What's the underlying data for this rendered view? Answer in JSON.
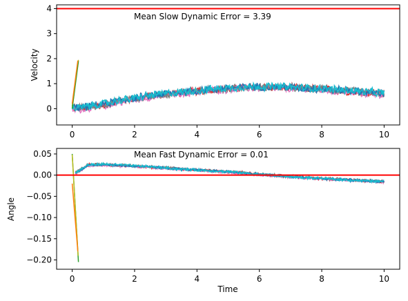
{
  "chart_data": [
    {
      "type": "line",
      "title": "",
      "xlabel": "",
      "ylabel": "Velocity",
      "annotation": "Mean Slow Dynamic Error = 3.39",
      "xlim": [
        -0.5,
        10.5
      ],
      "ylim": [
        -0.65,
        4.15
      ],
      "xticks": [
        0,
        2,
        4,
        6,
        8,
        10
      ],
      "yticks": [
        0,
        1,
        2,
        3,
        4
      ],
      "reference_line": {
        "y": 4.0,
        "color": "#ff0000"
      },
      "grid": false,
      "legend": "none",
      "series_colors": [
        "#d62728",
        "#e377c2",
        "#7f7f7f",
        "#1f77b4",
        "#17becf"
      ],
      "series": [
        {
          "x": [
            0,
            0.5,
            1,
            1.5,
            2,
            2.5,
            3,
            3.5,
            4,
            4.5,
            5,
            5.5,
            6,
            6.5,
            7,
            7.5,
            8,
            8.5,
            9,
            9.5,
            10
          ],
          "values": [
            0,
            0.05,
            0.15,
            0.3,
            0.4,
            0.5,
            0.58,
            0.64,
            0.7,
            0.76,
            0.8,
            0.84,
            0.86,
            0.85,
            0.83,
            0.8,
            0.78,
            0.73,
            0.69,
            0.64,
            0.6
          ]
        },
        {
          "x": [
            0,
            0.5,
            1,
            1.5,
            2,
            2.5,
            3,
            3.5,
            4,
            4.5,
            5,
            5.5,
            6,
            6.5,
            7,
            7.5,
            8,
            8.5,
            9,
            9.5,
            10
          ],
          "values": [
            -0.05,
            0.02,
            0.12,
            0.27,
            0.37,
            0.47,
            0.55,
            0.61,
            0.67,
            0.73,
            0.77,
            0.81,
            0.83,
            0.82,
            0.8,
            0.77,
            0.75,
            0.7,
            0.66,
            0.61,
            0.57
          ]
        },
        {
          "x": [
            0,
            0.5,
            1,
            1.5,
            2,
            2.5,
            3,
            3.5,
            4,
            4.5,
            5,
            5.5,
            6,
            6.5,
            7,
            7.5,
            8,
            8.5,
            9,
            9.5,
            10
          ],
          "values": [
            0.02,
            0.06,
            0.17,
            0.31,
            0.41,
            0.51,
            0.59,
            0.65,
            0.71,
            0.77,
            0.81,
            0.85,
            0.87,
            0.86,
            0.84,
            0.81,
            0.79,
            0.74,
            0.7,
            0.65,
            0.61
          ]
        },
        {
          "x": [
            0,
            0.5,
            1,
            1.5,
            2,
            2.5,
            3,
            3.5,
            4,
            4.5,
            5,
            5.5,
            6,
            6.5,
            7,
            7.5,
            8,
            8.5,
            9,
            9.5,
            10
          ],
          "values": [
            0.03,
            0.08,
            0.18,
            0.32,
            0.42,
            0.52,
            0.6,
            0.66,
            0.72,
            0.78,
            0.82,
            0.86,
            0.88,
            0.87,
            0.85,
            0.82,
            0.8,
            0.75,
            0.71,
            0.66,
            0.62
          ]
        },
        {
          "x": [
            0,
            0.5,
            1,
            1.5,
            2,
            2.5,
            3,
            3.5,
            4,
            4.5,
            5,
            5.5,
            6,
            6.5,
            7,
            7.5,
            8,
            8.5,
            9,
            9.5,
            10
          ],
          "values": [
            0,
            0.1,
            0.2,
            0.33,
            0.43,
            0.53,
            0.61,
            0.67,
            0.73,
            0.79,
            0.83,
            0.87,
            0.89,
            0.88,
            0.86,
            0.83,
            0.81,
            0.76,
            0.72,
            0.67,
            0.63
          ]
        }
      ],
      "divergent_traces": [
        {
          "x": [
            0,
            0.2
          ],
          "values": [
            0.1,
            1.95
          ],
          "color": "#bcbd22"
        },
        {
          "x": [
            0,
            0.2
          ],
          "values": [
            0.0,
            1.9
          ],
          "color": "#2ca02c"
        },
        {
          "x": [
            0,
            0.18
          ],
          "values": [
            0.2,
            1.92
          ],
          "color": "#ff7f0e"
        }
      ]
    },
    {
      "type": "line",
      "title": "",
      "xlabel": "Time",
      "ylabel": "Angle",
      "annotation": "Mean Fast Dynamic Error = 0.01",
      "xlim": [
        -0.5,
        10.5
      ],
      "ylim": [
        -0.222,
        0.063
      ],
      "xticks": [
        0,
        2,
        4,
        6,
        8,
        10
      ],
      "yticks": [
        0.05,
        0.0,
        -0.05,
        -0.1,
        -0.15,
        -0.2
      ],
      "ytick_labels": [
        "0.05",
        "0.00",
        "−0.05",
        "−0.10",
        "−0.15",
        "−0.20"
      ],
      "reference_line": {
        "y": 0.0,
        "color": "#ff0000"
      },
      "grid": false,
      "legend": "none",
      "series_colors": [
        "#d62728",
        "#e377c2",
        "#7f7f7f",
        "#1f77b4",
        "#17becf"
      ],
      "series": [
        {
          "x": [
            0.1,
            0.5,
            1,
            1.5,
            2,
            2.5,
            3,
            3.5,
            4,
            4.5,
            5,
            5.5,
            6,
            6.5,
            7,
            7.5,
            8,
            8.5,
            9,
            9.5,
            10
          ],
          "values": [
            0.005,
            0.024,
            0.025,
            0.023,
            0.021,
            0.019,
            0.017,
            0.014,
            0.012,
            0.01,
            0.008,
            0.005,
            0.002,
            -0.001,
            -0.004,
            -0.006,
            -0.008,
            -0.01,
            -0.012,
            -0.014,
            -0.015
          ]
        },
        {
          "x": [
            0.1,
            0.5,
            1,
            1.5,
            2,
            2.5,
            3,
            3.5,
            4,
            4.5,
            5,
            5.5,
            6,
            6.5,
            7,
            7.5,
            8,
            8.5,
            9,
            9.5,
            10
          ],
          "values": [
            0.003,
            0.022,
            0.024,
            0.022,
            0.02,
            0.018,
            0.016,
            0.013,
            0.011,
            0.009,
            0.007,
            0.004,
            0.001,
            -0.002,
            -0.005,
            -0.007,
            -0.009,
            -0.011,
            -0.013,
            -0.015,
            -0.016
          ]
        },
        {
          "x": [
            0.1,
            0.5,
            1,
            1.5,
            2,
            2.5,
            3,
            3.5,
            4,
            4.5,
            5,
            5.5,
            6,
            6.5,
            7,
            7.5,
            8,
            8.5,
            9,
            9.5,
            10
          ],
          "values": [
            0.006,
            0.025,
            0.026,
            0.024,
            0.022,
            0.02,
            0.018,
            0.015,
            0.013,
            0.011,
            0.009,
            0.006,
            0.003,
            0.0,
            -0.003,
            -0.005,
            -0.007,
            -0.009,
            -0.011,
            -0.013,
            -0.014
          ]
        },
        {
          "x": [
            0.1,
            0.5,
            1,
            1.5,
            2,
            2.5,
            3,
            3.5,
            4,
            4.5,
            5,
            5.5,
            6,
            6.5,
            7,
            7.5,
            8,
            8.5,
            9,
            9.5,
            10
          ],
          "values": [
            0.004,
            0.023,
            0.025,
            0.023,
            0.021,
            0.019,
            0.017,
            0.014,
            0.012,
            0.01,
            0.008,
            0.005,
            0.002,
            -0.001,
            -0.004,
            -0.006,
            -0.008,
            -0.01,
            -0.012,
            -0.014,
            -0.015
          ]
        },
        {
          "x": [
            0.1,
            0.5,
            1,
            1.5,
            2,
            2.5,
            3,
            3.5,
            4,
            4.5,
            5,
            5.5,
            6,
            6.5,
            7,
            7.5,
            8,
            8.5,
            9,
            9.5,
            10
          ],
          "values": [
            0.005,
            0.024,
            0.026,
            0.024,
            0.022,
            0.02,
            0.017,
            0.014,
            0.012,
            0.01,
            0.008,
            0.005,
            0.002,
            -0.001,
            -0.004,
            -0.006,
            -0.008,
            -0.01,
            -0.012,
            -0.014,
            -0.015
          ]
        }
      ],
      "divergent_traces": [
        {
          "x": [
            0,
            0.2
          ],
          "values": [
            0.05,
            -0.205
          ],
          "color": "#2ca02c"
        },
        {
          "x": [
            0,
            0.19
          ],
          "values": [
            0.048,
            -0.19
          ],
          "color": "#bcbd22"
        },
        {
          "x": [
            0,
            0.18
          ],
          "values": [
            -0.02,
            -0.18
          ],
          "color": "#ff7f0e"
        }
      ]
    }
  ]
}
